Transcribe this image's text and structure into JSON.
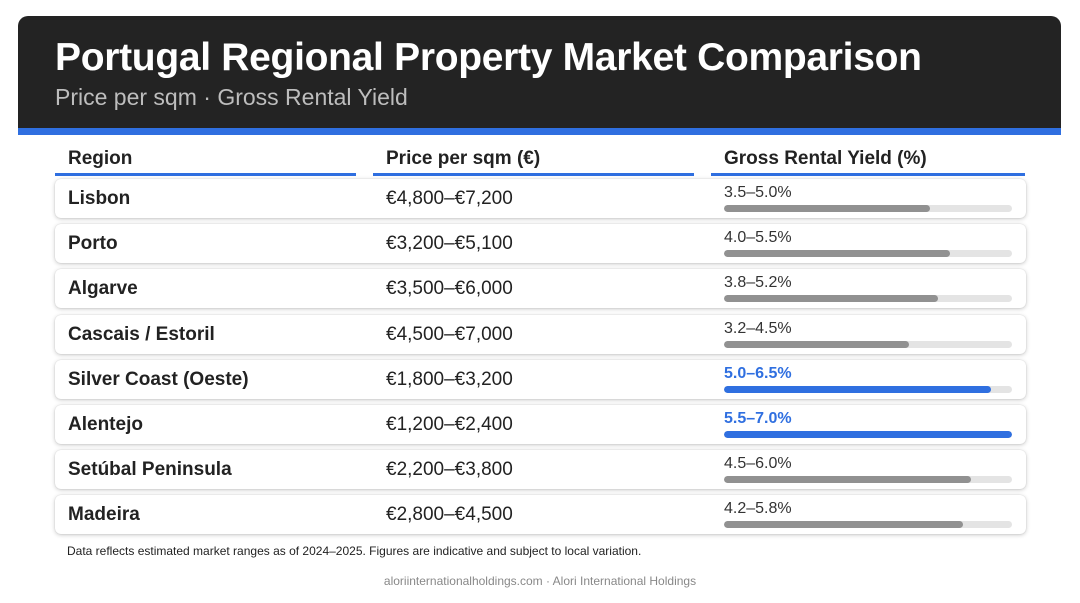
{
  "header": {
    "title": "Portugal Regional Property Market Comparison",
    "subtitle": "Price per sqm · Gross Rental Yield"
  },
  "columns": {
    "region": "Region",
    "price": "Price per sqm (€)",
    "yield": "Gross Rental Yield (%)"
  },
  "colors": {
    "header_bg": "#232323",
    "accent": "#2F6FE0",
    "bar_default": "#919191",
    "bar_track": "#e4e4e4"
  },
  "chart_data": {
    "type": "table",
    "yield_scale_max_pct": 7.0,
    "rows": [
      {
        "region": "Lisbon",
        "price": "€4,800–€7,200",
        "yield_label": "3.5–5.0%",
        "yield_low": 3.5,
        "yield_high": 5.0,
        "highlight": false
      },
      {
        "region": "Porto",
        "price": "€3,200–€5,100",
        "yield_label": "4.0–5.5%",
        "yield_low": 4.0,
        "yield_high": 5.5,
        "highlight": false
      },
      {
        "region": "Algarve",
        "price": "€3,500–€6,000",
        "yield_label": "3.8–5.2%",
        "yield_low": 3.8,
        "yield_high": 5.2,
        "highlight": false
      },
      {
        "region": "Cascais / Estoril",
        "price": "€4,500–€7,000",
        "yield_label": "3.2–4.5%",
        "yield_low": 3.2,
        "yield_high": 4.5,
        "highlight": false
      },
      {
        "region": "Silver Coast (Oeste)",
        "price": "€1,800–€3,200",
        "yield_label": "5.0–6.5%",
        "yield_low": 5.0,
        "yield_high": 6.5,
        "highlight": true
      },
      {
        "region": "Alentejo",
        "price": "€1,200–€2,400",
        "yield_label": "5.5–7.0%",
        "yield_low": 5.5,
        "yield_high": 7.0,
        "highlight": true
      },
      {
        "region": "Setúbal Peninsula",
        "price": "€2,200–€3,800",
        "yield_label": "4.5–6.0%",
        "yield_low": 4.5,
        "yield_high": 6.0,
        "highlight": false
      },
      {
        "region": "Madeira",
        "price": "€2,800–€4,500",
        "yield_label": "4.2–5.8%",
        "yield_low": 4.2,
        "yield_high": 5.8,
        "highlight": false
      }
    ]
  },
  "note": "Data reflects estimated market ranges as of 2024–2025. Figures are indicative and subject to local variation.",
  "footer": "aloriinternationalholdings.com · Alori International Holdings"
}
